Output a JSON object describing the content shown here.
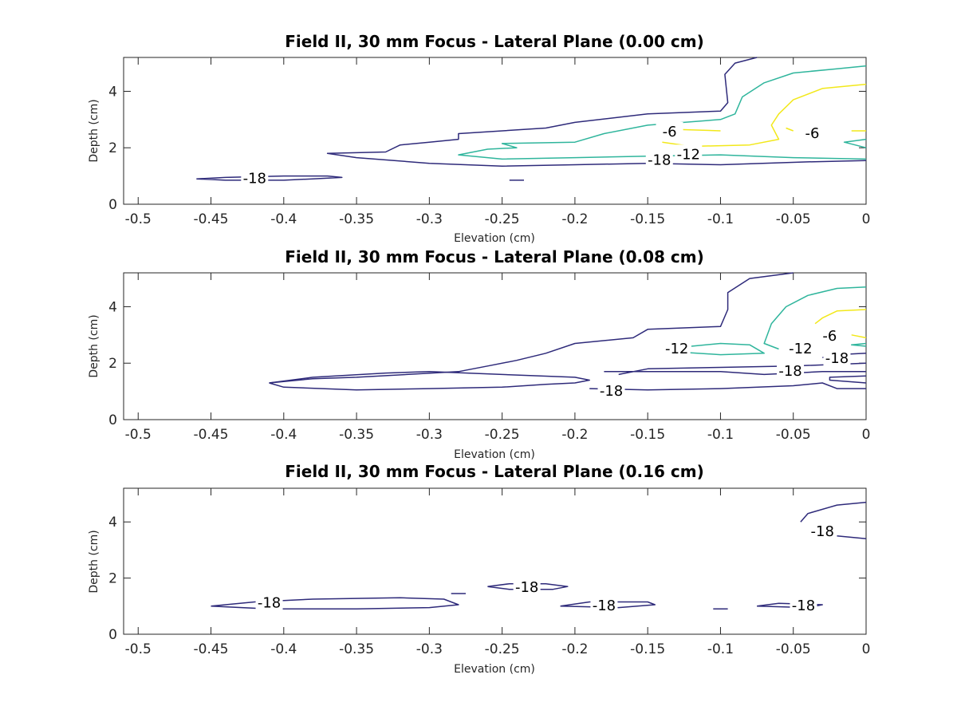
{
  "colors": {
    "-18": "#2e2a7a",
    "-12": "#2fb59c",
    "-6": "#f2e81a",
    "axis": "#262626"
  },
  "chart_data": [
    {
      "type": "contour",
      "title": "Field II, 30 mm Focus - Lateral Plane (0.00 cm)",
      "xlabel": "Elevation (cm)",
      "ylabel": "Depth (cm)",
      "xlim": [
        -0.51,
        0
      ],
      "ylim": [
        0,
        5.2
      ],
      "xticks": [
        -0.5,
        -0.45,
        -0.4,
        -0.35,
        -0.3,
        -0.25,
        -0.2,
        -0.15,
        -0.1,
        -0.05,
        0
      ],
      "xtick_labels": [
        "-0.5",
        "-0.45",
        "-0.4",
        "-0.35",
        "-0.3",
        "-0.25",
        "-0.2",
        "-0.15",
        "-0.1",
        "-0.05",
        "0"
      ],
      "yticks": [
        0,
        2,
        4
      ],
      "ytick_labels": [
        "0",
        "2",
        "4"
      ],
      "contours": [
        {
          "level": -18,
          "points": [
            [
              -0.46,
              0.9
            ],
            [
              -0.44,
              0.85
            ],
            [
              -0.4,
              0.85
            ],
            [
              -0.38,
              0.9
            ],
            [
              -0.36,
              0.95
            ],
            [
              -0.37,
              1.0
            ],
            [
              -0.4,
              1.0
            ],
            [
              -0.44,
              0.95
            ],
            [
              -0.46,
              0.9
            ]
          ]
        },
        {
          "level": -18,
          "points": [
            [
              -0.245,
              0.85
            ],
            [
              -0.235,
              0.85
            ]
          ]
        },
        {
          "level": -18,
          "points": [
            [
              0,
              1.55
            ],
            [
              -0.04,
              1.5
            ],
            [
              -0.1,
              1.4
            ],
            [
              -0.15,
              1.45
            ],
            [
              -0.2,
              1.4
            ],
            [
              -0.25,
              1.35
            ],
            [
              -0.3,
              1.45
            ],
            [
              -0.35,
              1.65
            ],
            [
              -0.37,
              1.8
            ],
            [
              -0.33,
              1.85
            ],
            [
              -0.32,
              2.1
            ],
            [
              -0.3,
              2.2
            ],
            [
              -0.28,
              2.3
            ],
            [
              -0.28,
              2.5
            ],
            [
              -0.22,
              2.7
            ],
            [
              -0.2,
              2.9
            ],
            [
              -0.15,
              3.2
            ],
            [
              -0.1,
              3.3
            ],
            [
              -0.095,
              3.6
            ],
            [
              -0.097,
              4.6
            ],
            [
              -0.09,
              5.0
            ],
            [
              -0.075,
              5.2
            ]
          ]
        },
        {
          "level": -12,
          "points": [
            [
              0,
              1.6
            ],
            [
              -0.05,
              1.65
            ],
            [
              -0.1,
              1.75
            ],
            [
              -0.15,
              1.7
            ],
            [
              -0.2,
              1.65
            ],
            [
              -0.25,
              1.6
            ],
            [
              -0.28,
              1.75
            ],
            [
              -0.26,
              1.95
            ],
            [
              -0.24,
              2.0
            ],
            [
              -0.25,
              2.15
            ],
            [
              -0.2,
              2.2
            ],
            [
              -0.18,
              2.5
            ],
            [
              -0.15,
              2.8
            ],
            [
              -0.1,
              3.0
            ],
            [
              -0.09,
              3.2
            ],
            [
              -0.085,
              3.8
            ],
            [
              -0.07,
              4.3
            ],
            [
              -0.05,
              4.65
            ],
            [
              -0.02,
              4.8
            ],
            [
              0,
              4.9
            ]
          ]
        },
        {
          "level": -12,
          "points": [
            [
              0,
              2.0
            ],
            [
              -0.015,
              2.2
            ],
            [
              0,
              2.3
            ]
          ]
        },
        {
          "level": -6,
          "points": [
            [
              -0.14,
              2.2
            ],
            [
              -0.12,
              2.05
            ],
            [
              -0.08,
              2.1
            ],
            [
              -0.06,
              2.3
            ],
            [
              -0.065,
              2.8
            ],
            [
              -0.06,
              3.2
            ],
            [
              -0.05,
              3.7
            ],
            [
              -0.03,
              4.1
            ],
            [
              0,
              4.25
            ]
          ]
        },
        {
          "level": -6,
          "points": [
            [
              -0.14,
              2.6
            ],
            [
              -0.13,
              2.65
            ],
            [
              -0.1,
              2.6
            ]
          ]
        },
        {
          "level": -6,
          "points": [
            [
              -0.05,
              2.6
            ],
            [
              -0.055,
              2.7
            ]
          ]
        },
        {
          "level": -6,
          "points": [
            [
              -0.01,
              2.6
            ],
            [
              0,
              2.6
            ]
          ]
        }
      ],
      "labels": [
        {
          "text": "-18",
          "x": -0.42,
          "y": 0.95
        },
        {
          "text": "-6",
          "x": -0.135,
          "y": 2.6
        },
        {
          "text": "-6",
          "x": -0.037,
          "y": 2.55
        },
        {
          "text": "-18",
          "x": -0.142,
          "y": 1.6
        },
        {
          "text": "-12",
          "x": -0.122,
          "y": 1.8
        }
      ]
    },
    {
      "type": "contour",
      "title": "Field II, 30 mm Focus - Lateral Plane (0.08 cm)",
      "xlabel": "Elevation (cm)",
      "ylabel": "Depth (cm)",
      "xlim": [
        -0.51,
        0
      ],
      "ylim": [
        0,
        5.2
      ],
      "xticks": [
        -0.5,
        -0.45,
        -0.4,
        -0.35,
        -0.3,
        -0.25,
        -0.2,
        -0.15,
        -0.1,
        -0.05,
        0
      ],
      "xtick_labels": [
        "-0.5",
        "-0.45",
        "-0.4",
        "-0.35",
        "-0.3",
        "-0.25",
        "-0.2",
        "-0.15",
        "-0.1",
        "-0.05",
        "0"
      ],
      "yticks": [
        0,
        2,
        4
      ],
      "ytick_labels": [
        "0",
        "2",
        "4"
      ],
      "contours": [
        {
          "level": -18,
          "points": [
            [
              -0.41,
              1.3
            ],
            [
              -0.4,
              1.15
            ],
            [
              -0.35,
              1.05
            ],
            [
              -0.3,
              1.1
            ],
            [
              -0.25,
              1.15
            ],
            [
              -0.22,
              1.25
            ],
            [
              -0.2,
              1.3
            ],
            [
              -0.19,
              1.4
            ],
            [
              -0.2,
              1.5
            ],
            [
              -0.25,
              1.6
            ],
            [
              -0.3,
              1.7
            ],
            [
              -0.33,
              1.65
            ],
            [
              -0.38,
              1.5
            ],
            [
              -0.41,
              1.3
            ]
          ]
        },
        {
          "level": -18,
          "points": [
            [
              -0.41,
              1.3
            ],
            [
              -0.38,
              1.45
            ],
            [
              -0.35,
              1.5
            ],
            [
              -0.28,
              1.7
            ],
            [
              -0.26,
              1.9
            ],
            [
              -0.24,
              2.1
            ],
            [
              -0.22,
              2.35
            ],
            [
              -0.2,
              2.7
            ],
            [
              -0.16,
              2.9
            ],
            [
              -0.15,
              3.2
            ],
            [
              -0.1,
              3.3
            ],
            [
              -0.095,
              3.9
            ],
            [
              -0.095,
              4.5
            ],
            [
              -0.08,
              5.0
            ],
            [
              -0.05,
              5.2
            ]
          ]
        },
        {
          "level": -18,
          "points": [
            [
              -0.19,
              1.1
            ],
            [
              -0.15,
              1.05
            ],
            [
              -0.1,
              1.1
            ],
            [
              -0.05,
              1.2
            ],
            [
              -0.03,
              1.3
            ],
            [
              -0.02,
              1.1
            ],
            [
              0,
              1.1
            ]
          ]
        },
        {
          "level": -18,
          "points": [
            [
              -0.18,
              1.7
            ],
            [
              -0.1,
              1.7
            ],
            [
              -0.07,
              1.6
            ],
            [
              -0.05,
              1.65
            ],
            [
              -0.03,
              1.7
            ],
            [
              0,
              1.7
            ]
          ]
        },
        {
          "level": -18,
          "points": [
            [
              -0.17,
              1.6
            ],
            [
              -0.15,
              1.8
            ],
            [
              -0.1,
              1.85
            ],
            [
              -0.05,
              1.9
            ],
            [
              0,
              2.0
            ]
          ]
        },
        {
          "level": -18,
          "points": [
            [
              0,
              1.55
            ],
            [
              -0.025,
              1.5
            ],
            [
              -0.025,
              1.4
            ],
            [
              0,
              1.3
            ]
          ]
        },
        {
          "level": -18,
          "points": [
            [
              -0.03,
              2.2
            ],
            [
              -0.02,
              2.3
            ],
            [
              0,
              2.35
            ]
          ]
        },
        {
          "level": -12,
          "points": [
            [
              -0.13,
              2.4
            ],
            [
              -0.1,
              2.3
            ],
            [
              -0.07,
              2.35
            ],
            [
              -0.08,
              2.65
            ],
            [
              -0.1,
              2.7
            ],
            [
              -0.12,
              2.6
            ]
          ]
        },
        {
          "level": -12,
          "points": [
            [
              -0.06,
              2.5
            ],
            [
              -0.07,
              2.7
            ],
            [
              -0.065,
              3.4
            ],
            [
              -0.055,
              4.0
            ],
            [
              -0.04,
              4.4
            ],
            [
              -0.02,
              4.65
            ],
            [
              0,
              4.7
            ]
          ]
        },
        {
          "level": -12,
          "points": [
            [
              0,
              2.6
            ],
            [
              -0.01,
              2.65
            ],
            [
              0,
              2.7
            ]
          ]
        },
        {
          "level": -6,
          "points": [
            [
              -0.035,
              3.4
            ],
            [
              -0.03,
              3.6
            ],
            [
              -0.02,
              3.85
            ],
            [
              0,
              3.9
            ]
          ]
        },
        {
          "level": -6,
          "points": [
            [
              -0.01,
              3.0
            ],
            [
              0,
              2.9
            ]
          ]
        }
      ],
      "labels": [
        {
          "text": "-12",
          "x": -0.13,
          "y": 2.55
        },
        {
          "text": "-12",
          "x": -0.045,
          "y": 2.55
        },
        {
          "text": "-6",
          "x": -0.025,
          "y": 3.0
        },
        {
          "text": "-18",
          "x": -0.02,
          "y": 2.2
        },
        {
          "text": "-18",
          "x": -0.052,
          "y": 1.75
        },
        {
          "text": "-18",
          "x": -0.175,
          "y": 1.05
        }
      ]
    },
    {
      "type": "contour",
      "title": "Field II, 30 mm Focus - Lateral Plane (0.16 cm)",
      "xlabel": "Elevation (cm)",
      "ylabel": "Depth (cm)",
      "xlim": [
        -0.51,
        0
      ],
      "ylim": [
        0,
        5.2
      ],
      "xticks": [
        -0.5,
        -0.45,
        -0.4,
        -0.35,
        -0.3,
        -0.25,
        -0.2,
        -0.15,
        -0.1,
        -0.05,
        0
      ],
      "xtick_labels": [
        "-0.5",
        "-0.45",
        "-0.4",
        "-0.35",
        "-0.3",
        "-0.25",
        "-0.2",
        "-0.15",
        "-0.1",
        "-0.05",
        "0"
      ],
      "yticks": [
        0,
        2,
        4
      ],
      "ytick_labels": [
        "0",
        "2",
        "4"
      ],
      "contours": [
        {
          "level": -18,
          "points": [
            [
              -0.45,
              1.0
            ],
            [
              -0.41,
              0.9
            ],
            [
              -0.35,
              0.9
            ],
            [
              -0.3,
              0.95
            ],
            [
              -0.28,
              1.05
            ],
            [
              -0.29,
              1.25
            ],
            [
              -0.32,
              1.3
            ],
            [
              -0.38,
              1.25
            ],
            [
              -0.42,
              1.15
            ],
            [
              -0.45,
              1.0
            ]
          ]
        },
        {
          "level": -18,
          "points": [
            [
              -0.285,
              1.45
            ],
            [
              -0.275,
              1.45
            ]
          ]
        },
        {
          "level": -18,
          "points": [
            [
              -0.26,
              1.7
            ],
            [
              -0.245,
              1.6
            ],
            [
              -0.215,
              1.6
            ],
            [
              -0.205,
              1.7
            ],
            [
              -0.22,
              1.8
            ],
            [
              -0.245,
              1.8
            ],
            [
              -0.26,
              1.7
            ]
          ]
        },
        {
          "level": -18,
          "points": [
            [
              -0.21,
              1.0
            ],
            [
              -0.17,
              0.95
            ],
            [
              -0.145,
              1.05
            ],
            [
              -0.15,
              1.15
            ],
            [
              -0.19,
              1.15
            ],
            [
              -0.21,
              1.0
            ]
          ]
        },
        {
          "level": -18,
          "points": [
            [
              -0.105,
              0.9
            ],
            [
              -0.095,
              0.9
            ]
          ]
        },
        {
          "level": -18,
          "points": [
            [
              -0.075,
              1.0
            ],
            [
              -0.04,
              0.95
            ],
            [
              -0.03,
              1.05
            ],
            [
              -0.06,
              1.1
            ],
            [
              -0.075,
              1.0
            ]
          ]
        },
        {
          "level": -18,
          "points": [
            [
              -0.045,
              4.0
            ],
            [
              -0.04,
              4.3
            ],
            [
              -0.02,
              4.6
            ],
            [
              0,
              4.7
            ]
          ]
        },
        {
          "level": -18,
          "points": [
            [
              -0.02,
              3.5
            ],
            [
              0,
              3.4
            ]
          ]
        }
      ],
      "labels": [
        {
          "text": "-18",
          "x": -0.41,
          "y": 1.15
        },
        {
          "text": "-18",
          "x": -0.233,
          "y": 1.7
        },
        {
          "text": "-18",
          "x": -0.18,
          "y": 1.05
        },
        {
          "text": "-18",
          "x": -0.043,
          "y": 1.05
        },
        {
          "text": "-18",
          "x": -0.03,
          "y": 3.7
        }
      ]
    }
  ]
}
